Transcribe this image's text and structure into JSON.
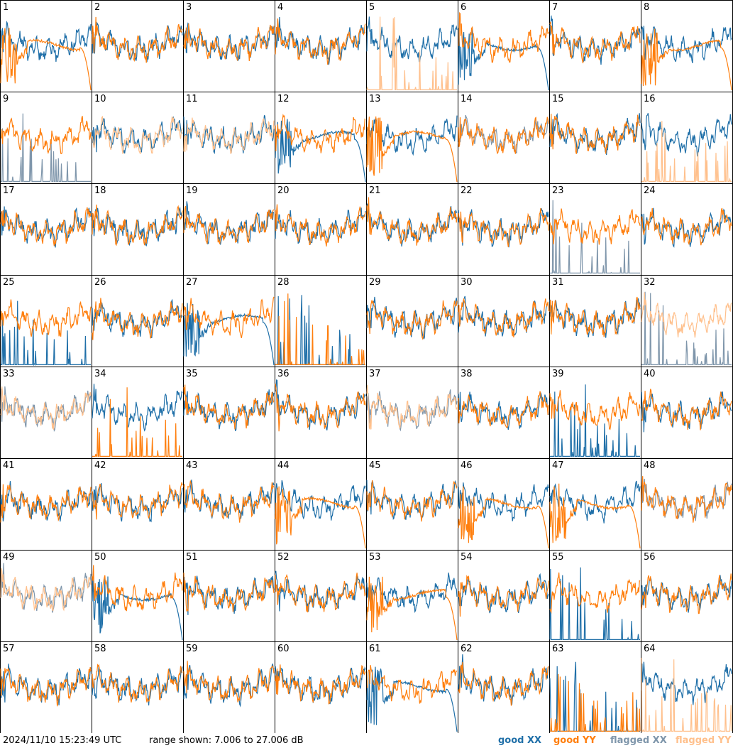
{
  "chart_data": {
    "type": "line",
    "rows": 8,
    "cols": 8,
    "timestamp": "2024/11/10 15:23:49 UTC",
    "range_text": "range shown: 7.006 to 27.006 dB",
    "ylim": [
      7.006,
      27.006
    ],
    "legend": [
      {
        "label": "good XX",
        "color": "#1f6fa8"
      },
      {
        "label": "good YY",
        "color": "#ff7f0e"
      },
      {
        "label": "flagged XX",
        "color": "#7f96ab"
      },
      {
        "label": "flagged YY",
        "color": "#ffc08c"
      }
    ],
    "tiles": [
      {
        "n": "1",
        "xx": "good",
        "yy": "good",
        "xs": "normal",
        "ys": "decay"
      },
      {
        "n": "2",
        "xx": "good",
        "yy": "good",
        "xs": "normal",
        "ys": "normal"
      },
      {
        "n": "3",
        "xx": "good",
        "yy": "good",
        "xs": "normal",
        "ys": "normal"
      },
      {
        "n": "4",
        "xx": "good",
        "yy": "good",
        "xs": "normal",
        "ys": "normal"
      },
      {
        "n": "5",
        "xx": "good",
        "yy": "flagged",
        "xs": "normal",
        "ys": "spiky"
      },
      {
        "n": "6",
        "xx": "good",
        "yy": "good",
        "xs": "decay",
        "ys": "normal"
      },
      {
        "n": "7",
        "xx": "good",
        "yy": "good",
        "xs": "normal",
        "ys": "normal"
      },
      {
        "n": "8",
        "xx": "good",
        "yy": "good",
        "xs": "normal",
        "ys": "decay"
      },
      {
        "n": "9",
        "xx": "flagged",
        "yy": "good",
        "xs": "spiky",
        "ys": "normal"
      },
      {
        "n": "10",
        "xx": "good",
        "yy": "flagged",
        "xs": "normal",
        "ys": "normal"
      },
      {
        "n": "11",
        "xx": "good",
        "yy": "flagged",
        "xs": "normal",
        "ys": "normal"
      },
      {
        "n": "12",
        "xx": "good",
        "yy": "good",
        "xs": "decay",
        "ys": "normal"
      },
      {
        "n": "13",
        "xx": "good",
        "yy": "good",
        "xs": "normal",
        "ys": "decay"
      },
      {
        "n": "14",
        "xx": "flagged",
        "yy": "good",
        "xs": "normal",
        "ys": "normal"
      },
      {
        "n": "15",
        "xx": "good",
        "yy": "good",
        "xs": "normal",
        "ys": "normal"
      },
      {
        "n": "16",
        "xx": "good",
        "yy": "flagged",
        "xs": "normal",
        "ys": "spiky"
      },
      {
        "n": "17",
        "xx": "good",
        "yy": "good",
        "xs": "normal",
        "ys": "normal"
      },
      {
        "n": "18",
        "xx": "good",
        "yy": "good",
        "xs": "normal",
        "ys": "normal"
      },
      {
        "n": "19",
        "xx": "good",
        "yy": "good",
        "xs": "normal",
        "ys": "normal"
      },
      {
        "n": "20",
        "xx": "good",
        "yy": "good",
        "xs": "normal",
        "ys": "normal"
      },
      {
        "n": "21",
        "xx": "good",
        "yy": "good",
        "xs": "normal",
        "ys": "normal"
      },
      {
        "n": "22",
        "xx": "good",
        "yy": "good",
        "xs": "normal",
        "ys": "normal"
      },
      {
        "n": "23",
        "xx": "flagged",
        "yy": "good",
        "xs": "spiky",
        "ys": "normal"
      },
      {
        "n": "24",
        "xx": "good",
        "yy": "good",
        "xs": "normal",
        "ys": "normal"
      },
      {
        "n": "25",
        "xx": "good",
        "yy": "good",
        "xs": "spiky",
        "ys": "normal"
      },
      {
        "n": "26",
        "xx": "good",
        "yy": "good",
        "xs": "normal",
        "ys": "normal"
      },
      {
        "n": "27",
        "xx": "good",
        "yy": "good",
        "xs": "decay",
        "ys": "normal"
      },
      {
        "n": "28",
        "xx": "good",
        "yy": "good",
        "xs": "spiky",
        "ys": "spiky"
      },
      {
        "n": "29",
        "xx": "good",
        "yy": "good",
        "xs": "normal",
        "ys": "normal"
      },
      {
        "n": "30",
        "xx": "good",
        "yy": "good",
        "xs": "normal",
        "ys": "normal"
      },
      {
        "n": "31",
        "xx": "good",
        "yy": "good",
        "xs": "normal",
        "ys": "normal"
      },
      {
        "n": "32",
        "xx": "flagged",
        "yy": "flagged",
        "xs": "spiky",
        "ys": "normal"
      },
      {
        "n": "33",
        "xx": "flagged",
        "yy": "flagged",
        "xs": "normal",
        "ys": "normal"
      },
      {
        "n": "34",
        "xx": "good",
        "yy": "good",
        "xs": "normal",
        "ys": "spiky"
      },
      {
        "n": "35",
        "xx": "good",
        "yy": "good",
        "xs": "normal",
        "ys": "normal"
      },
      {
        "n": "36",
        "xx": "good",
        "yy": "good",
        "xs": "normal",
        "ys": "normal"
      },
      {
        "n": "37",
        "xx": "flagged",
        "yy": "flagged",
        "xs": "normal",
        "ys": "normal"
      },
      {
        "n": "38",
        "xx": "good",
        "yy": "good",
        "xs": "normal",
        "ys": "normal"
      },
      {
        "n": "39",
        "xx": "good",
        "yy": "good",
        "xs": "spiky",
        "ys": "normal"
      },
      {
        "n": "40",
        "xx": "good",
        "yy": "good",
        "xs": "normal",
        "ys": "normal"
      },
      {
        "n": "41",
        "xx": "good",
        "yy": "good",
        "xs": "normal",
        "ys": "normal"
      },
      {
        "n": "42",
        "xx": "good",
        "yy": "good",
        "xs": "normal",
        "ys": "normal"
      },
      {
        "n": "43",
        "xx": "good",
        "yy": "good",
        "xs": "normal",
        "ys": "normal"
      },
      {
        "n": "44",
        "xx": "good",
        "yy": "good",
        "xs": "normal",
        "ys": "decay"
      },
      {
        "n": "45",
        "xx": "good",
        "yy": "good",
        "xs": "normal",
        "ys": "normal"
      },
      {
        "n": "46",
        "xx": "good",
        "yy": "good",
        "xs": "normal",
        "ys": "decay"
      },
      {
        "n": "47",
        "xx": "good",
        "yy": "good",
        "xs": "normal",
        "ys": "decay"
      },
      {
        "n": "48",
        "xx": "flagged",
        "yy": "good",
        "xs": "normal",
        "ys": "normal"
      },
      {
        "n": "49",
        "xx": "flagged",
        "yy": "flagged",
        "xs": "normal",
        "ys": "normal"
      },
      {
        "n": "50",
        "xx": "good",
        "yy": "good",
        "xs": "decay",
        "ys": "normal"
      },
      {
        "n": "51",
        "xx": "good",
        "yy": "good",
        "xs": "normal",
        "ys": "normal"
      },
      {
        "n": "52",
        "xx": "good",
        "yy": "good",
        "xs": "normal",
        "ys": "normal"
      },
      {
        "n": "53",
        "xx": "good",
        "yy": "good",
        "xs": "normal",
        "ys": "decay"
      },
      {
        "n": "54",
        "xx": "good",
        "yy": "good",
        "xs": "normal",
        "ys": "normal"
      },
      {
        "n": "55",
        "xx": "good",
        "yy": "good",
        "xs": "spiky",
        "ys": "normal"
      },
      {
        "n": "56",
        "xx": "good",
        "yy": "good",
        "xs": "normal",
        "ys": "normal"
      },
      {
        "n": "57",
        "xx": "good",
        "yy": "good",
        "xs": "normal",
        "ys": "normal"
      },
      {
        "n": "58",
        "xx": "good",
        "yy": "good",
        "xs": "normal",
        "ys": "normal"
      },
      {
        "n": "59",
        "xx": "good",
        "yy": "good",
        "xs": "normal",
        "ys": "normal"
      },
      {
        "n": "60",
        "xx": "good",
        "yy": "good",
        "xs": "normal",
        "ys": "normal"
      },
      {
        "n": "61",
        "xx": "good",
        "yy": "good",
        "xs": "decay",
        "ys": "normal"
      },
      {
        "n": "62",
        "xx": "good",
        "yy": "good",
        "xs": "normal",
        "ys": "normal"
      },
      {
        "n": "63",
        "xx": "good",
        "yy": "good",
        "xs": "spiky",
        "ys": "spiky"
      },
      {
        "n": "64",
        "xx": "good",
        "yy": "flagged",
        "xs": "normal",
        "ys": "spiky"
      }
    ]
  }
}
